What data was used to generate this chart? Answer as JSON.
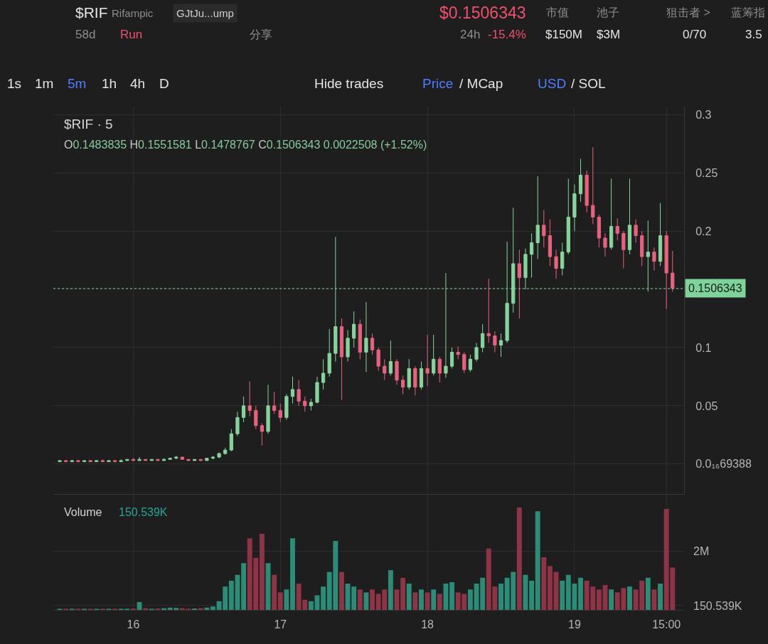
{
  "chart_data": [
    {
      "type": "candlestick",
      "title": "$RIF · 5",
      "subtitle": "O0.1483835 H0.1551581 L0.1478767 C0.1506343 0.0022508 (+1.52%)",
      "x": [
        "--01-15T12:00",
        "--01-15T13:00",
        "--01-15T14:00",
        "--01-15T15:00",
        "--01-15T16:00",
        "--01-15T17:00",
        "--01-15T18:00",
        "--01-15T19:00",
        "--01-15T20:00",
        "--01-15T21:00",
        "--01-15T22:00",
        "--01-15T23:00",
        "--01-16T00:00",
        "--01-16T01:00",
        "--01-16T02:00",
        "--01-16T03:00",
        "--01-16T04:00",
        "--01-16T05:00",
        "--01-16T06:00",
        "--01-16T07:00",
        "--01-16T08:00",
        "--01-16T09:00",
        "--01-16T10:00",
        "--01-16T11:00",
        "--01-16T12:00",
        "--01-16T13:00",
        "--01-16T14:00",
        "--01-16T15:00",
        "--01-16T16:00",
        "--01-16T17:00",
        "--01-16T18:00",
        "--01-16T19:00",
        "--01-16T20:00",
        "--01-16T21:00",
        "--01-16T22:00",
        "--01-16T23:00",
        "--01-17T00:00",
        "--01-17T01:00",
        "--01-17T02:00",
        "--01-17T03:00",
        "--01-17T04:00",
        "--01-17T05:00",
        "--01-17T06:00",
        "--01-17T07:00",
        "--01-17T08:00",
        "--01-17T09:00",
        "--01-17T10:00",
        "--01-17T11:00",
        "--01-17T12:00",
        "--01-17T13:00",
        "--01-17T14:00",
        "--01-17T15:00",
        "--01-17T16:00",
        "--01-17T17:00",
        "--01-17T18:00",
        "--01-17T19:00",
        "--01-17T20:00",
        "--01-17T21:00",
        "--01-17T22:00",
        "--01-17T23:00",
        "--01-18T00:00",
        "--01-18T01:00",
        "--01-18T02:00",
        "--01-18T03:00",
        "--01-18T04:00",
        "--01-18T05:00",
        "--01-18T06:00",
        "--01-18T07:00",
        "--01-18T08:00",
        "--01-18T09:00",
        "--01-18T10:00",
        "--01-18T11:00",
        "--01-18T12:00",
        "--01-18T13:00",
        "--01-18T14:00",
        "--01-18T15:00",
        "--01-18T16:00",
        "--01-18T17:00",
        "--01-18T18:00",
        "--01-18T19:00",
        "--01-18T20:00",
        "--01-18T21:00",
        "--01-18T22:00",
        "--01-18T23:00",
        "--01-19T00:00",
        "--01-19T01:00",
        "--01-19T02:00",
        "--01-19T03:00",
        "--01-19T04:00",
        "--01-19T05:00",
        "--01-19T06:00",
        "--01-19T07:00",
        "--01-19T08:00",
        "--01-19T09:00",
        "--01-19T10:00",
        "--01-19T11:00",
        "--01-19T12:00",
        "--01-19T13:00",
        "--01-19T14:00",
        "--01-19T15:00",
        "--01-19T16:00"
      ],
      "ohlc": [
        [
          0.002,
          0.003,
          0.002,
          0.003
        ],
        [
          0.003,
          0.003,
          0.002,
          0.002
        ],
        [
          0.002,
          0.003,
          0.002,
          0.003
        ],
        [
          0.003,
          0.003,
          0.002,
          0.002
        ],
        [
          0.002,
          0.003,
          0.002,
          0.003
        ],
        [
          0.003,
          0.003,
          0.002,
          0.002
        ],
        [
          0.002,
          0.003,
          0.002,
          0.003
        ],
        [
          0.003,
          0.004,
          0.002,
          0.002
        ],
        [
          0.002,
          0.003,
          0.002,
          0.003
        ],
        [
          0.003,
          0.003,
          0.002,
          0.002
        ],
        [
          0.002,
          0.004,
          0.002,
          0.003
        ],
        [
          0.003,
          0.004,
          0.003,
          0.004
        ],
        [
          0.004,
          0.005,
          0.003,
          0.003
        ],
        [
          0.003,
          0.006,
          0.003,
          0.004
        ],
        [
          0.004,
          0.004,
          0.003,
          0.003
        ],
        [
          0.003,
          0.004,
          0.003,
          0.004
        ],
        [
          0.004,
          0.004,
          0.003,
          0.003
        ],
        [
          0.003,
          0.005,
          0.003,
          0.004
        ],
        [
          0.004,
          0.005,
          0.004,
          0.005
        ],
        [
          0.005,
          0.007,
          0.004,
          0.006
        ],
        [
          0.006,
          0.006,
          0.004,
          0.004
        ],
        [
          0.004,
          0.004,
          0.003,
          0.003
        ],
        [
          0.003,
          0.004,
          0.003,
          0.004
        ],
        [
          0.004,
          0.004,
          0.003,
          0.003
        ],
        [
          0.003,
          0.005,
          0.003,
          0.005
        ],
        [
          0.005,
          0.007,
          0.004,
          0.006
        ],
        [
          0.006,
          0.01,
          0.005,
          0.009
        ],
        [
          0.009,
          0.014,
          0.008,
          0.012
        ],
        [
          0.012,
          0.03,
          0.011,
          0.026
        ],
        [
          0.026,
          0.045,
          0.024,
          0.04
        ],
        [
          0.04,
          0.058,
          0.036,
          0.05
        ],
        [
          0.05,
          0.071,
          0.041,
          0.046
        ],
        [
          0.046,
          0.05,
          0.03,
          0.033
        ],
        [
          0.033,
          0.035,
          0.016,
          0.028
        ],
        [
          0.028,
          0.068,
          0.026,
          0.05
        ],
        [
          0.05,
          0.062,
          0.043,
          0.046
        ],
        [
          0.046,
          0.052,
          0.036,
          0.04
        ],
        [
          0.04,
          0.06,
          0.038,
          0.058
        ],
        [
          0.058,
          0.075,
          0.052,
          0.064
        ],
        [
          0.064,
          0.072,
          0.05,
          0.054
        ],
        [
          0.054,
          0.058,
          0.045,
          0.05
        ],
        [
          0.05,
          0.056,
          0.046,
          0.053
        ],
        [
          0.053,
          0.075,
          0.052,
          0.07
        ],
        [
          0.07,
          0.09,
          0.064,
          0.078
        ],
        [
          0.078,
          0.116,
          0.075,
          0.095
        ],
        [
          0.095,
          0.195,
          0.088,
          0.118
        ],
        [
          0.118,
          0.125,
          0.055,
          0.092
        ],
        [
          0.092,
          0.115,
          0.088,
          0.108
        ],
        [
          0.108,
          0.131,
          0.1,
          0.12
        ],
        [
          0.12,
          0.124,
          0.09,
          0.096
        ],
        [
          0.096,
          0.139,
          0.079,
          0.108
        ],
        [
          0.108,
          0.112,
          0.094,
          0.098
        ],
        [
          0.098,
          0.1,
          0.08,
          0.084
        ],
        [
          0.084,
          0.09,
          0.072,
          0.078
        ],
        [
          0.078,
          0.106,
          0.076,
          0.088
        ],
        [
          0.088,
          0.09,
          0.068,
          0.072
        ],
        [
          0.072,
          0.076,
          0.06,
          0.066
        ],
        [
          0.066,
          0.09,
          0.064,
          0.082
        ],
        [
          0.082,
          0.084,
          0.059,
          0.066
        ],
        [
          0.066,
          0.088,
          0.064,
          0.082
        ],
        [
          0.082,
          0.111,
          0.067,
          0.078
        ],
        [
          0.078,
          0.111,
          0.076,
          0.09
        ],
        [
          0.09,
          0.092,
          0.07,
          0.078
        ],
        [
          0.078,
          0.164,
          0.074,
          0.084
        ],
        [
          0.084,
          0.1,
          0.082,
          0.096
        ],
        [
          0.096,
          0.101,
          0.09,
          0.094
        ],
        [
          0.094,
          0.096,
          0.078,
          0.081
        ],
        [
          0.081,
          0.094,
          0.079,
          0.09
        ],
        [
          0.09,
          0.104,
          0.088,
          0.1
        ],
        [
          0.1,
          0.12,
          0.096,
          0.112
        ],
        [
          0.112,
          0.159,
          0.104,
          0.11
        ],
        [
          0.11,
          0.114,
          0.096,
          0.102
        ],
        [
          0.102,
          0.112,
          0.092,
          0.106
        ],
        [
          0.106,
          0.191,
          0.104,
          0.138
        ],
        [
          0.138,
          0.22,
          0.13,
          0.172
        ],
        [
          0.172,
          0.184,
          0.125,
          0.16
        ],
        [
          0.16,
          0.185,
          0.15,
          0.18
        ],
        [
          0.18,
          0.198,
          0.16,
          0.19
        ],
        [
          0.19,
          0.247,
          0.176,
          0.205
        ],
        [
          0.205,
          0.218,
          0.186,
          0.196
        ],
        [
          0.196,
          0.21,
          0.17,
          0.178
        ],
        [
          0.178,
          0.184,
          0.159,
          0.168
        ],
        [
          0.168,
          0.19,
          0.162,
          0.182
        ],
        [
          0.182,
          0.245,
          0.18,
          0.212
        ],
        [
          0.212,
          0.24,
          0.2,
          0.232
        ],
        [
          0.232,
          0.262,
          0.225,
          0.248
        ],
        [
          0.248,
          0.252,
          0.216,
          0.222
        ],
        [
          0.222,
          0.272,
          0.206,
          0.212
        ],
        [
          0.212,
          0.214,
          0.186,
          0.194
        ],
        [
          0.194,
          0.198,
          0.178,
          0.186
        ],
        [
          0.186,
          0.245,
          0.184,
          0.204
        ],
        [
          0.204,
          0.211,
          0.192,
          0.198
        ],
        [
          0.198,
          0.2,
          0.168,
          0.184
        ],
        [
          0.184,
          0.245,
          0.18,
          0.205
        ],
        [
          0.205,
          0.21,
          0.19,
          0.196
        ],
        [
          0.196,
          0.2,
          0.17,
          0.178
        ],
        [
          0.178,
          0.209,
          0.148,
          0.182
        ],
        [
          0.182,
          0.186,
          0.166,
          0.174
        ],
        [
          0.174,
          0.224,
          0.17,
          0.196
        ],
        [
          0.196,
          0.2,
          0.133,
          0.164
        ],
        [
          0.164,
          0.183,
          0.148,
          0.151
        ]
      ],
      "colors": [
        "#86d49b",
        "#e8617e",
        "#86d49b",
        "#e8617e",
        "#86d49b",
        "#e8617e",
        "#86d49b",
        "#e8617e",
        "#86d49b",
        "#e8617e",
        "#86d49b",
        "#86d49b",
        "#e8617e",
        "#86d49b",
        "#e8617e",
        "#86d49b",
        "#e8617e",
        "#86d49b",
        "#86d49b",
        "#86d49b",
        "#e8617e",
        "#e8617e",
        "#86d49b",
        "#e8617e",
        "#86d49b",
        "#86d49b",
        "#86d49b",
        "#86d49b",
        "#86d49b",
        "#86d49b",
        "#86d49b",
        "#e8617e",
        "#e8617e",
        "#e8617e",
        "#86d49b",
        "#e8617e",
        "#e8617e",
        "#86d49b",
        "#86d49b",
        "#e8617e",
        "#e8617e",
        "#86d49b",
        "#86d49b",
        "#86d49b",
        "#86d49b",
        "#86d49b",
        "#e8617e",
        "#86d49b",
        "#86d49b",
        "#e8617e",
        "#86d49b",
        "#e8617e",
        "#e8617e",
        "#e8617e",
        "#86d49b",
        "#e8617e",
        "#e8617e",
        "#86d49b",
        "#e8617e",
        "#86d49b",
        "#e8617e",
        "#86d49b",
        "#e8617e",
        "#86d49b",
        "#86d49b",
        "#e8617e",
        "#e8617e",
        "#86d49b",
        "#86d49b",
        "#86d49b",
        "#e8617e",
        "#e8617e",
        "#86d49b",
        "#86d49b",
        "#86d49b",
        "#e8617e",
        "#86d49b",
        "#86d49b",
        "#86d49b",
        "#e8617e",
        "#e8617e",
        "#e8617e",
        "#86d49b",
        "#86d49b",
        "#86d49b",
        "#86d49b",
        "#e8617e",
        "#e8617e",
        "#e8617e",
        "#e8617e",
        "#86d49b",
        "#e8617e",
        "#e8617e",
        "#86d49b",
        "#e8617e",
        "#e8617e",
        "#86d49b",
        "#e8617e",
        "#86d49b",
        "#e8617e",
        "#e8617e"
      ],
      "xlim": [
        "--01-15T10:57",
        "--01-19T17:53"
      ],
      "xticks": [
        {
          "value": "--01-16",
          "label": "16"
        },
        {
          "value": "--01-17",
          "label": "17"
        },
        {
          "value": "--01-18",
          "label": "18"
        },
        {
          "value": "--01-19",
          "label": "19"
        },
        {
          "value": "--01-19T15:00",
          "label": "15:00"
        }
      ],
      "ylim": [
        -0.026,
        0.307
      ],
      "yticks": [
        0.3,
        0.25,
        0.2,
        {
          "value": 0.15,
          "label": null
        },
        0.1,
        0.05,
        {
          "value": 6.9388e-17,
          "label": "0.0₁₆69388"
        }
      ],
      "grid": true,
      "tick_labels": "y",
      "ref_lines": [
        {
          "axis": "y",
          "value": 0.1506343,
          "label": "0.1506343",
          "color": "#7fd39a",
          "line_style": "dotted"
        }
      ],
      "annotations": [
        "$RIF",
        "Rifampic",
        "GJtJu...ump",
        "58d",
        "Run",
        "分享",
        "$0.1506343",
        "24h",
        "-15.4%",
        "市值",
        "$150M",
        "池子",
        "$3M",
        "狙击者 >",
        "0/70",
        "蓝筹指",
        "3.5",
        "1s",
        "1m",
        "5m",
        "1h",
        "4h",
        "D",
        "Hide trades",
        "Price",
        "/ MCap",
        "USD",
        "/ SOL"
      ]
    },
    {
      "type": "bar",
      "title": "Volume",
      "x": [
        "--01-15T12:00",
        "--01-15T13:00",
        "--01-15T14:00",
        "--01-15T15:00",
        "--01-15T16:00",
        "--01-15T17:00",
        "--01-15T18:00",
        "--01-15T19:00",
        "--01-15T20:00",
        "--01-15T21:00",
        "--01-15T22:00",
        "--01-15T23:00",
        "--01-16T00:00",
        "--01-16T01:00",
        "--01-16T02:00",
        "--01-16T03:00",
        "--01-16T04:00",
        "--01-16T05:00",
        "--01-16T06:00",
        "--01-16T07:00",
        "--01-16T08:00",
        "--01-16T09:00",
        "--01-16T10:00",
        "--01-16T11:00",
        "--01-16T12:00",
        "--01-16T13:00",
        "--01-16T14:00",
        "--01-16T15:00",
        "--01-16T16:00",
        "--01-16T17:00",
        "--01-16T18:00",
        "--01-16T19:00",
        "--01-16T20:00",
        "--01-16T21:00",
        "--01-16T22:00",
        "--01-16T23:00",
        "--01-17T00:00",
        "--01-17T01:00",
        "--01-17T02:00",
        "--01-17T03:00",
        "--01-17T04:00",
        "--01-17T05:00",
        "--01-17T06:00",
        "--01-17T07:00",
        "--01-17T08:00",
        "--01-17T09:00",
        "--01-17T10:00",
        "--01-17T11:00",
        "--01-17T12:00",
        "--01-17T13:00",
        "--01-17T14:00",
        "--01-17T15:00",
        "--01-17T16:00",
        "--01-17T17:00",
        "--01-17T18:00",
        "--01-17T19:00",
        "--01-17T20:00",
        "--01-17T21:00",
        "--01-17T22:00",
        "--01-17T23:00",
        "--01-18T00:00",
        "--01-18T01:00",
        "--01-18T02:00",
        "--01-18T03:00",
        "--01-18T04:00",
        "--01-18T05:00",
        "--01-18T06:00",
        "--01-18T07:00",
        "--01-18T08:00",
        "--01-18T09:00",
        "--01-18T10:00",
        "--01-18T11:00",
        "--01-18T12:00",
        "--01-18T13:00",
        "--01-18T14:00",
        "--01-18T15:00",
        "--01-18T16:00",
        "--01-18T17:00",
        "--01-18T18:00",
        "--01-18T19:00",
        "--01-18T20:00",
        "--01-18T21:00",
        "--01-18T22:00",
        "--01-18T23:00",
        "--01-19T00:00",
        "--01-19T01:00",
        "--01-19T02:00",
        "--01-19T03:00",
        "--01-19T04:00",
        "--01-19T05:00",
        "--01-19T06:00",
        "--01-19T07:00",
        "--01-19T08:00",
        "--01-19T09:00",
        "--01-19T10:00",
        "--01-19T11:00",
        "--01-19T12:00",
        "--01-19T13:00",
        "--01-19T14:00",
        "--01-19T15:00",
        "--01-19T16:00"
      ],
      "values": [
        30000,
        20000,
        40000,
        30000,
        20000,
        30000,
        20000,
        40000,
        30000,
        20000,
        30000,
        40000,
        50000,
        270000,
        60000,
        40000,
        50000,
        60000,
        80000,
        70000,
        60000,
        40000,
        50000,
        60000,
        80000,
        120000,
        300000,
        800000,
        1000000,
        1200000,
        1600000,
        2450000,
        1780000,
        2600000,
        1600000,
        1200000,
        600000,
        700000,
        2450000,
        900000,
        350000,
        300000,
        500000,
        800000,
        1300000,
        2360000,
        1300000,
        900000,
        800000,
        700000,
        600000,
        700000,
        550000,
        700000,
        1360000,
        700000,
        1100000,
        900000,
        600000,
        700000,
        600000,
        700000,
        550000,
        900000,
        950000,
        600000,
        550000,
        700000,
        900000,
        1100000,
        2100000,
        800000,
        900000,
        1100000,
        1300000,
        3500000,
        1200000,
        1000000,
        3370000,
        1800000,
        1500000,
        1300000,
        1000000,
        1200000,
        900000,
        1100000,
        1000000,
        800000,
        700000,
        850000,
        700000,
        600000,
        750000,
        800000,
        700000,
        1000000,
        1100000,
        700000,
        900000,
        3450000,
        1450000
      ],
      "colors": [
        "#2b8c78",
        "#8f3346",
        "#2b8c78",
        "#8f3346",
        "#2b8c78",
        "#8f3346",
        "#2b8c78",
        "#8f3346",
        "#2b8c78",
        "#8f3346",
        "#2b8c78",
        "#2b8c78",
        "#8f3346",
        "#2b8c78",
        "#8f3346",
        "#2b8c78",
        "#8f3346",
        "#2b8c78",
        "#2b8c78",
        "#2b8c78",
        "#8f3346",
        "#8f3346",
        "#2b8c78",
        "#8f3346",
        "#2b8c78",
        "#2b8c78",
        "#2b8c78",
        "#2b8c78",
        "#2b8c78",
        "#2b8c78",
        "#2b8c78",
        "#8f3346",
        "#8f3346",
        "#8f3346",
        "#2b8c78",
        "#8f3346",
        "#8f3346",
        "#2b8c78",
        "#2b8c78",
        "#8f3346",
        "#8f3346",
        "#2b8c78",
        "#2b8c78",
        "#2b8c78",
        "#2b8c78",
        "#2b8c78",
        "#8f3346",
        "#2b8c78",
        "#2b8c78",
        "#8f3346",
        "#2b8c78",
        "#8f3346",
        "#8f3346",
        "#8f3346",
        "#2b8c78",
        "#8f3346",
        "#8f3346",
        "#2b8c78",
        "#8f3346",
        "#2b8c78",
        "#8f3346",
        "#2b8c78",
        "#8f3346",
        "#2b8c78",
        "#2b8c78",
        "#8f3346",
        "#8f3346",
        "#2b8c78",
        "#2b8c78",
        "#2b8c78",
        "#8f3346",
        "#8f3346",
        "#2b8c78",
        "#2b8c78",
        "#2b8c78",
        "#8f3346",
        "#2b8c78",
        "#2b8c78",
        "#2b8c78",
        "#8f3346",
        "#8f3346",
        "#8f3346",
        "#2b8c78",
        "#2b8c78",
        "#2b8c78",
        "#2b8c78",
        "#8f3346",
        "#8f3346",
        "#8f3346",
        "#8f3346",
        "#2b8c78",
        "#8f3346",
        "#8f3346",
        "#2b8c78",
        "#8f3346",
        "#8f3346",
        "#2b8c78",
        "#8f3346",
        "#2b8c78",
        "#8f3346",
        "#8f3346"
      ],
      "xlim": [
        "--01-15T10:57",
        "--01-19T17:53"
      ],
      "xticks": [
        {
          "value": "--01-16",
          "label": "16"
        },
        {
          "value": "--01-17",
          "label": "17"
        },
        {
          "value": "--01-18",
          "label": "18"
        },
        {
          "value": "--01-19",
          "label": "19"
        },
        {
          "value": "--01-19T15:00",
          "label": "15:00"
        }
      ],
      "ylim": [
        0,
        3950000
      ],
      "yticks": [
        {
          "value": 150539,
          "label": "150.539K"
        },
        {
          "value": 2000000,
          "label": "2M"
        }
      ],
      "grid": true,
      "annotations": [
        "150.539K"
      ]
    }
  ]
}
